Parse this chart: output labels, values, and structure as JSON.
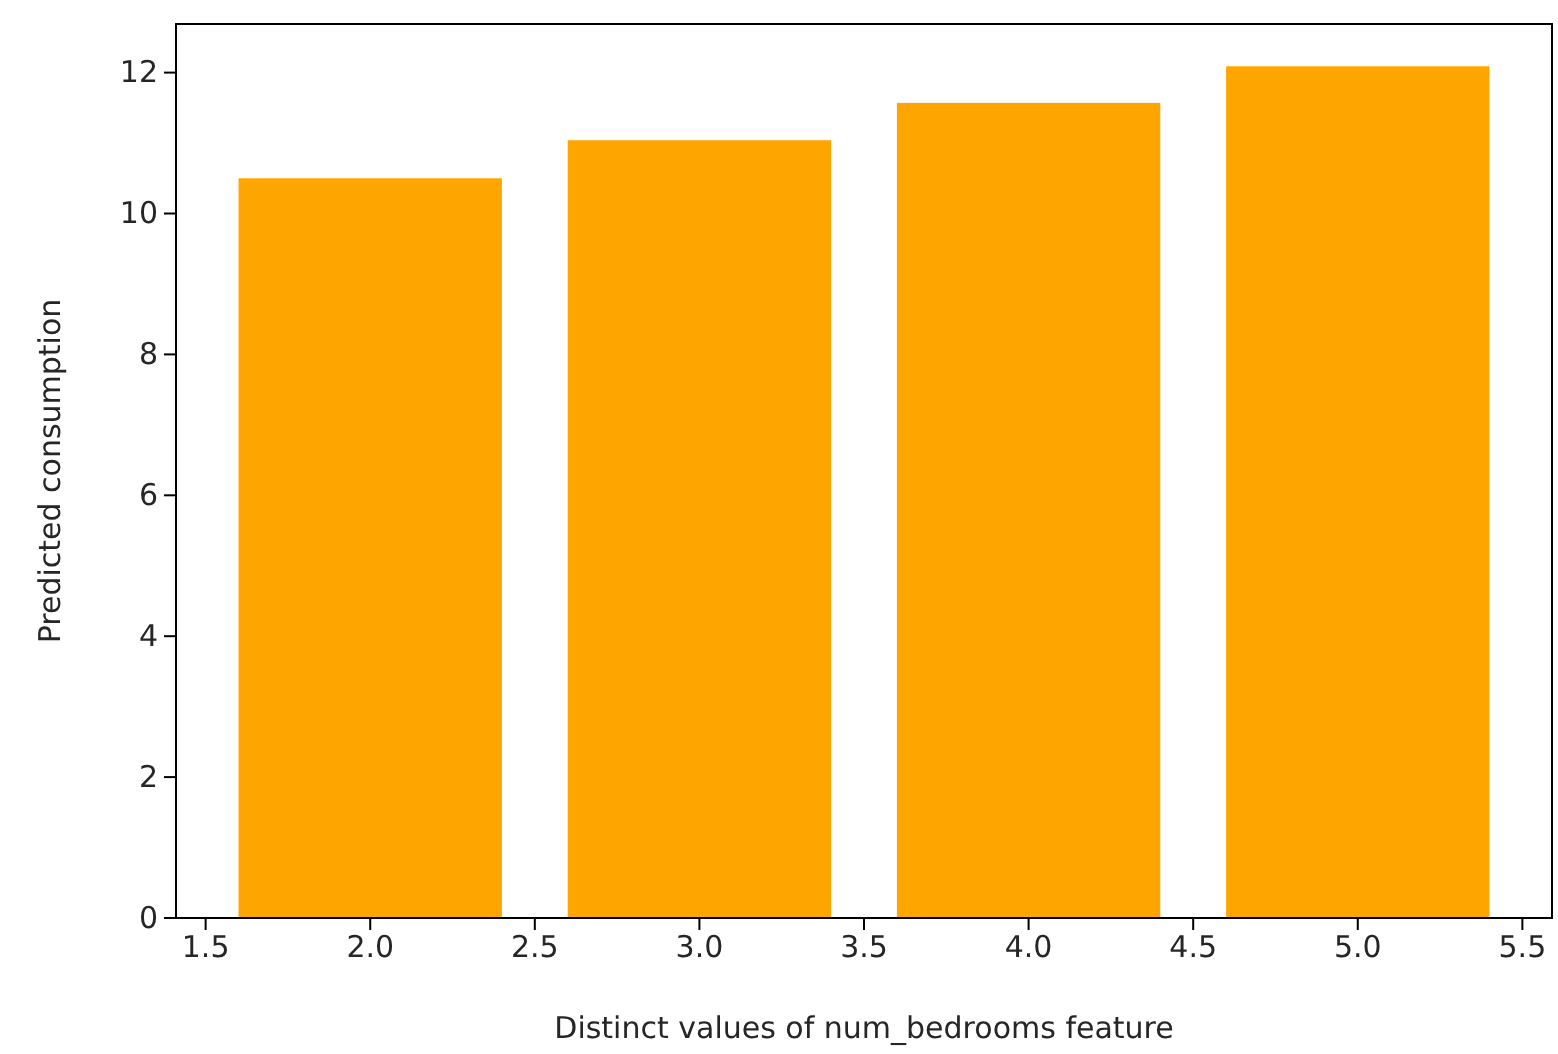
{
  "chart_data": {
    "type": "bar",
    "xlabel": "Distinct values of num_bedrooms feature",
    "ylabel": "Predicted consumption",
    "x": [
      2,
      3,
      4,
      5
    ],
    "values": [
      10.5,
      11.04,
      11.57,
      12.09
    ],
    "color": "#ffa500",
    "xlim": [
      1.41,
      5.59
    ],
    "xticks": [
      {
        "value": 1.5,
        "label": "1.5"
      },
      {
        "value": 2,
        "label": "2.0"
      },
      {
        "value": 2.5,
        "label": "2.5"
      },
      {
        "value": 3,
        "label": "3.0"
      },
      {
        "value": 3.5,
        "label": "3.5"
      },
      {
        "value": 4,
        "label": "4.0"
      },
      {
        "value": 4.5,
        "label": "4.5"
      },
      {
        "value": 5,
        "label": "5.0"
      },
      {
        "value": 5.5,
        "label": "5.5"
      }
    ],
    "ylim": [
      0,
      12.69
    ],
    "yticks": [
      0,
      2,
      4,
      6,
      8,
      10,
      12
    ],
    "grid": false
  }
}
